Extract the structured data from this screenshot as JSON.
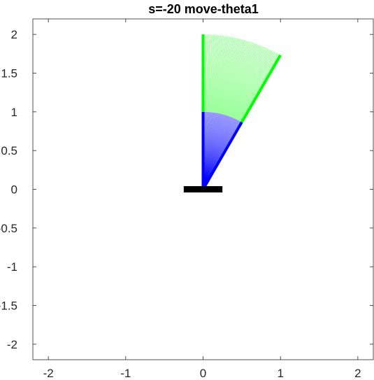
{
  "chart_data": {
    "type": "line",
    "title": "s=-20 move-theta1",
    "xlabel": "",
    "ylabel": "",
    "xlim": [
      -2.2,
      2.2
    ],
    "ylim": [
      -2.2,
      2.2
    ],
    "grid": false,
    "x_ticks": [
      -2,
      -1,
      0,
      1,
      2
    ],
    "x_tick_labels": [
      "-2",
      "-1",
      "0",
      "1",
      "2"
    ],
    "y_ticks": [
      2,
      1.5,
      1,
      0.5,
      0,
      -0.5,
      -1,
      -1.5,
      -2
    ],
    "y_tick_labels": [
      "2",
      "1.5",
      "1",
      "0.5",
      "0",
      "-0.5",
      "-1",
      "-1.5",
      "-2"
    ],
    "base": {
      "x": [
        -0.25,
        0.25
      ],
      "y": [
        0,
        0
      ],
      "color": "#000000"
    },
    "arm": {
      "link1_length": 1,
      "link2_length": 1,
      "theta1_start_deg": 90,
      "theta1_end_deg": 60,
      "theta2_rel_deg": 0,
      "steps": 61
    },
    "series": [
      {
        "color": "#0000ff"
      },
      {
        "color": "#00ff00"
      }
    ]
  }
}
